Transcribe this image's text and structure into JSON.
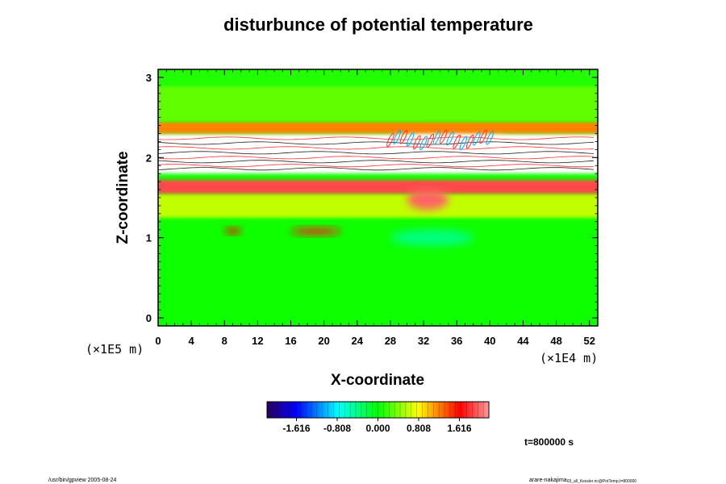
{
  "chart_data": {
    "type": "heatmap",
    "title": "disturbunce of potential temperature",
    "xlabel": "X-coordinate",
    "ylabel": "Z-coordinate",
    "x_scale_label": "(×1E4 m)",
    "y_scale_label": "(×1E5 m)",
    "xlim": [
      0,
      53
    ],
    "ylim": [
      -0.1,
      3.1
    ],
    "x_ticks": [
      "0",
      "4",
      "8",
      "12",
      "16",
      "20",
      "24",
      "28",
      "32",
      "36",
      "40",
      "44",
      "48",
      "52"
    ],
    "y_ticks": [
      "0",
      "1",
      "2",
      "3"
    ],
    "colorbar": {
      "range": [
        -2.2,
        2.2
      ],
      "tick_labels": [
        "-1.616",
        "-0.808",
        "0.000",
        "0.808",
        "1.616"
      ],
      "tick_values": [
        -1.616,
        -0.808,
        0.0,
        0.808,
        1.616
      ]
    },
    "field_regions": [
      {
        "z": [
          -0.05,
          1.2
        ],
        "value": 0.05,
        "note": "near-zero green lower layer"
      },
      {
        "x": [
          8,
          10
        ],
        "z": [
          1.05,
          1.12
        ],
        "value": 1.6
      },
      {
        "x": [
          16,
          22
        ],
        "z": [
          1.04,
          1.12
        ],
        "value": 1.7
      },
      {
        "x": [
          28,
          38
        ],
        "z": [
          0.9,
          1.1
        ],
        "value": -0.4
      },
      {
        "z": [
          1.25,
          1.55
        ],
        "value": 0.6
      },
      {
        "z": [
          1.55,
          1.72
        ],
        "value": 1.9
      },
      {
        "x": [
          30,
          35
        ],
        "z": [
          1.35,
          1.6
        ],
        "value": 2.0
      },
      {
        "z": [
          1.8,
          2.3
        ],
        "value": 3.0,
        "note": "out of range, left white with contour lines"
      },
      {
        "x": [
          28,
          42
        ],
        "z": [
          2.1,
          2.35
        ],
        "value": 2.5,
        "note": "wave pattern"
      },
      {
        "z": [
          2.3,
          2.45
        ],
        "value": 1.2
      },
      {
        "z": [
          2.45,
          2.9
        ],
        "value": 0.3
      },
      {
        "z": [
          2.9,
          3.1
        ],
        "value": 0.1
      }
    ]
  },
  "colors": {
    "min": "#2a0060",
    "blue": "#0000ff",
    "cyan": "#00ffff",
    "green": "#00ff00",
    "yellow": "#ffff00",
    "red": "#ff0000",
    "max": "#ff9a9a"
  },
  "footer": {
    "left": "/usr/bin/gpview 2005-08-24",
    "right_main": "arare-nakajima",
    "right_sub": "03_all_Kessler.nc@PotTemp,t=800000",
    "time_label": "t=800000 s"
  }
}
